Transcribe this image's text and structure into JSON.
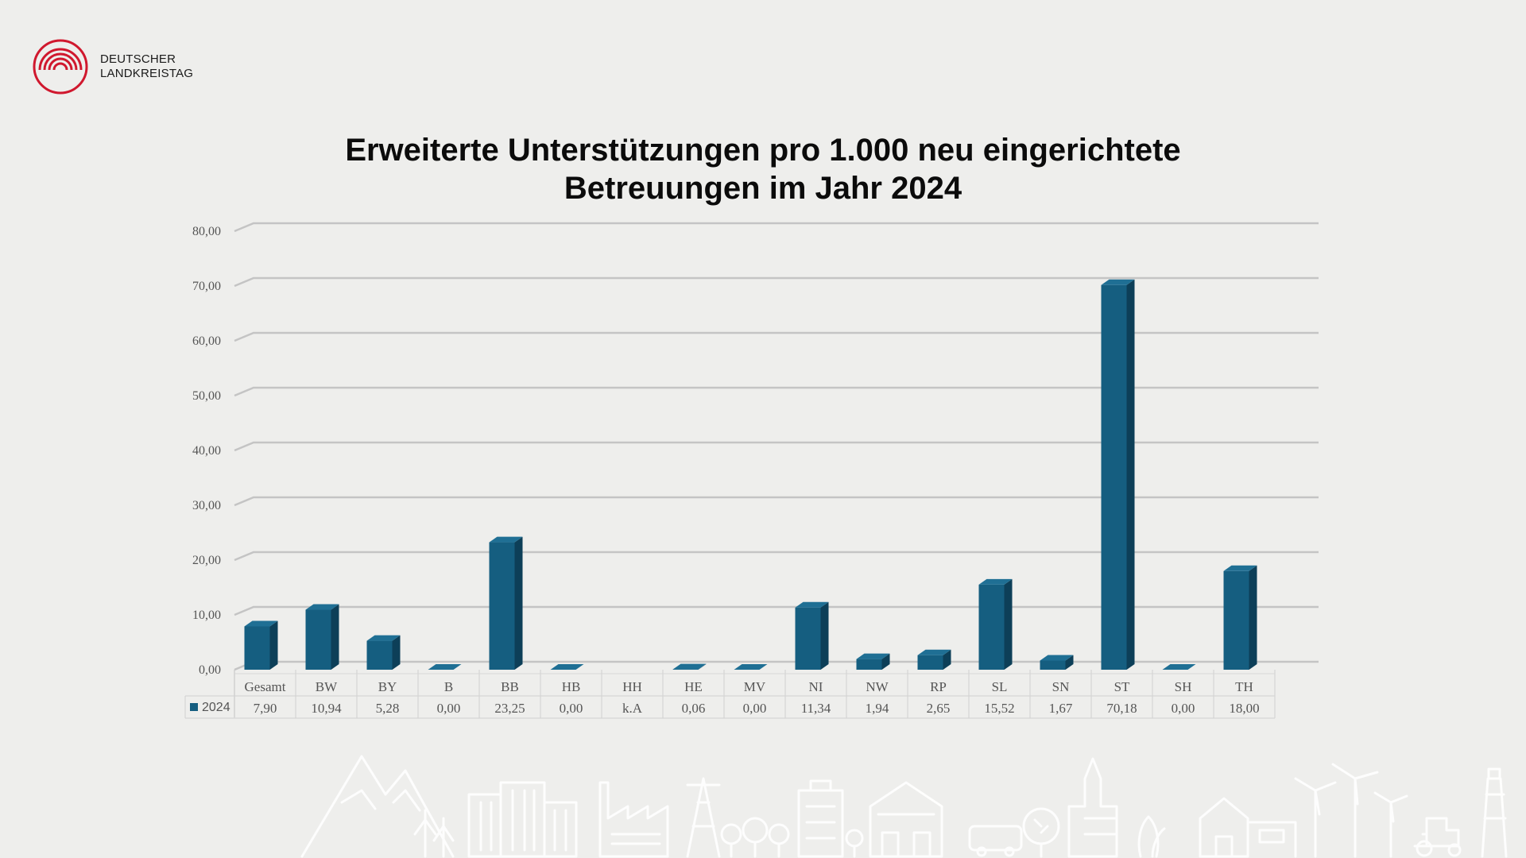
{
  "logo": {
    "line1": "DEUTSCHER",
    "line2": "LANDKREISTAG",
    "color": "#d0182e"
  },
  "title": {
    "line1": "Erweiterte Unterstützungen pro 1.000 neu eingerichtete",
    "line2": "Betreuungen im Jahr 2024"
  },
  "chart_data": {
    "type": "bar",
    "style": "3d-column",
    "categories": [
      "Gesamt",
      "BW",
      "BY",
      "B",
      "BB",
      "HB",
      "HH",
      "HE",
      "MV",
      "NI",
      "NW",
      "RP",
      "SL",
      "SN",
      "ST",
      "SH",
      "TH"
    ],
    "series": [
      {
        "name": "2024",
        "values": [
          7.9,
          10.94,
          5.28,
          0.0,
          23.25,
          0.0,
          null,
          0.06,
          0.0,
          11.34,
          1.94,
          2.65,
          15.52,
          1.67,
          70.18,
          0.0,
          18.0
        ],
        "labels": [
          "7,90",
          "10,94",
          "5,28",
          "0,00",
          "23,25",
          "0,00",
          "k.A",
          "0,06",
          "0,00",
          "11,34",
          "1,94",
          "2,65",
          "15,52",
          "1,67",
          "70,18",
          "0,00",
          "18,00"
        ],
        "color": "#155e80"
      }
    ],
    "yticks": [
      "0,00",
      "10,00",
      "20,00",
      "30,00",
      "40,00",
      "50,00",
      "60,00",
      "70,00",
      "80,00"
    ],
    "ylim": [
      0,
      80
    ],
    "grid": true,
    "legend": "data-table"
  }
}
